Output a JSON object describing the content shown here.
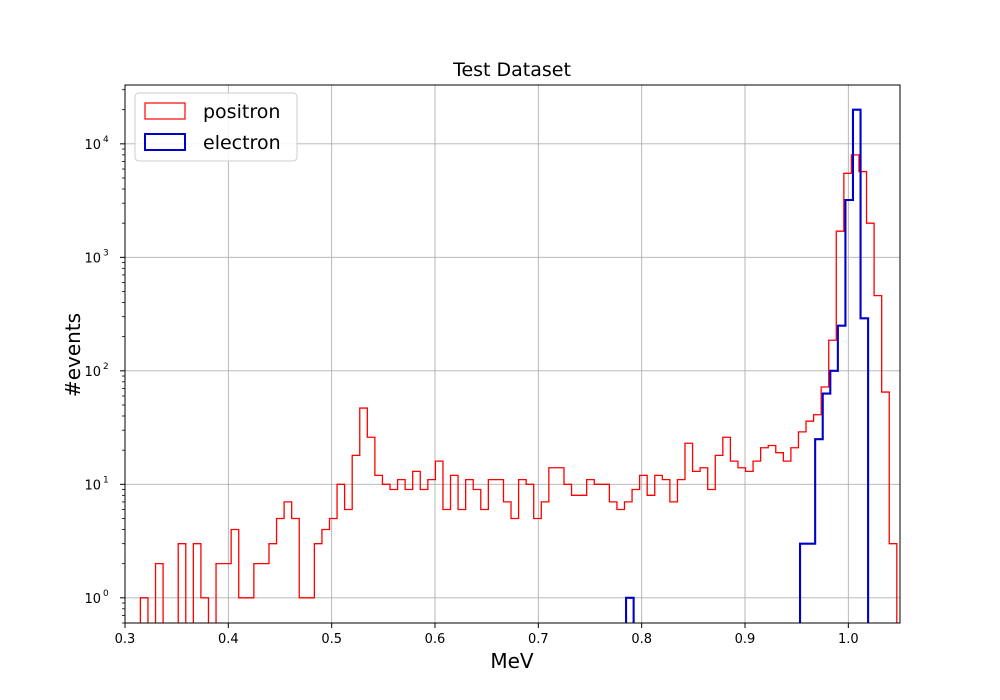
{
  "chart_data": {
    "type": "histogram",
    "title": "Test Dataset",
    "xlabel": "MeV",
    "ylabel": "#events",
    "xlim": [
      0.3,
      1.05
    ],
    "ylim": [
      0.6,
      33000
    ],
    "yscale": "log",
    "grid": true,
    "legend_position": "top-left",
    "x_ticks": [
      0.3,
      0.4,
      0.5,
      0.6,
      0.7,
      0.8,
      0.9,
      1.0
    ],
    "x_tick_labels": [
      "0.3",
      "0.4",
      "0.5",
      "0.6",
      "0.7",
      "0.8",
      "0.9",
      "1.0"
    ],
    "y_ticks": [
      {
        "value": 1,
        "base": "10",
        "exp": "0"
      },
      {
        "value": 10,
        "base": "10",
        "exp": "1"
      },
      {
        "value": 100,
        "base": "10",
        "exp": "2"
      },
      {
        "value": 1000,
        "base": "10",
        "exp": "3"
      },
      {
        "value": 10000,
        "base": "10",
        "exp": "4"
      }
    ],
    "series": [
      {
        "name": "positron",
        "color": "#ff0000",
        "bin_start": 0.3149,
        "bin_width": 0.00732,
        "counts": [
          1,
          0,
          2,
          0,
          0,
          3,
          0,
          3,
          1,
          0,
          2,
          2,
          4,
          1,
          1,
          2,
          2,
          3,
          5,
          7,
          5,
          1,
          1,
          3,
          4,
          5,
          10,
          6,
          18,
          47,
          26,
          12,
          10,
          9,
          11,
          9,
          13,
          9,
          11,
          16,
          6,
          12,
          6,
          11,
          9,
          6,
          11,
          11,
          7,
          5,
          11,
          10,
          5,
          7,
          14,
          14,
          10,
          8,
          8,
          11,
          10,
          10,
          7,
          6,
          7,
          9,
          12,
          8,
          12,
          11,
          7,
          11,
          23,
          13,
          14,
          9,
          18,
          26,
          16,
          14,
          13,
          16,
          21,
          22,
          19,
          16,
          21,
          29,
          36,
          41,
          72,
          186,
          1700,
          5500,
          8000,
          5700,
          2000,
          460,
          65,
          3,
          0
        ]
      },
      {
        "name": "electron",
        "color": "#0000cc",
        "bin_start": 0.7849,
        "bin_width": 0.00732,
        "counts": [
          1,
          0,
          0,
          0,
          0,
          0,
          0,
          0,
          0,
          0,
          0,
          0,
          0,
          0,
          0,
          0,
          0,
          0,
          0,
          0,
          0,
          0,
          0,
          3,
          3,
          25,
          63,
          100,
          250,
          3200,
          20000,
          290,
          0
        ]
      }
    ]
  }
}
